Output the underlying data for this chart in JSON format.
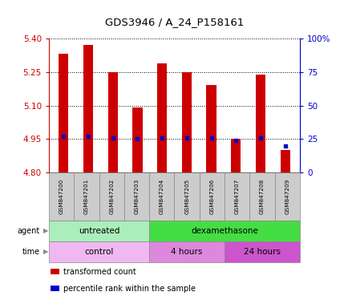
{
  "title": "GDS3946 / A_24_P158161",
  "samples": [
    "GSM847200",
    "GSM847201",
    "GSM847202",
    "GSM847203",
    "GSM847204",
    "GSM847205",
    "GSM847206",
    "GSM847207",
    "GSM847208",
    "GSM847209"
  ],
  "transformed_count": [
    5.33,
    5.37,
    5.25,
    5.09,
    5.29,
    5.25,
    5.19,
    4.95,
    5.24,
    4.9
  ],
  "percentile_rank": [
    27,
    27,
    26,
    25,
    26,
    26,
    26,
    24,
    26,
    20
  ],
  "ylim_left": [
    4.8,
    5.4
  ],
  "ylim_right": [
    0,
    100
  ],
  "yticks_left": [
    4.8,
    4.95,
    5.1,
    5.25,
    5.4
  ],
  "yticks_right": [
    0,
    25,
    50,
    75,
    100
  ],
  "ytick_labels_right": [
    "0",
    "25",
    "50",
    "75",
    "100%"
  ],
  "bar_color": "#cc0000",
  "dot_color": "#0000cc",
  "bar_bottom": 4.8,
  "agent_groups": [
    {
      "label": "untreated",
      "start": 0,
      "end": 4,
      "color": "#aaeebb"
    },
    {
      "label": "dexamethasone",
      "start": 4,
      "end": 10,
      "color": "#44dd44"
    }
  ],
  "time_groups": [
    {
      "label": "control",
      "start": 0,
      "end": 4,
      "color": "#f0b8f0"
    },
    {
      "label": "4 hours",
      "start": 4,
      "end": 7,
      "color": "#dd88dd"
    },
    {
      "label": "24 hours",
      "start": 7,
      "end": 10,
      "color": "#cc55cc"
    }
  ],
  "legend_items": [
    {
      "label": "transformed count",
      "color": "#cc0000"
    },
    {
      "label": "percentile rank within the sample",
      "color": "#0000cc"
    }
  ],
  "tick_label_color_left": "#cc0000",
  "tick_label_color_right": "#0000cc",
  "sample_box_color": "#cccccc",
  "bar_width": 0.4
}
